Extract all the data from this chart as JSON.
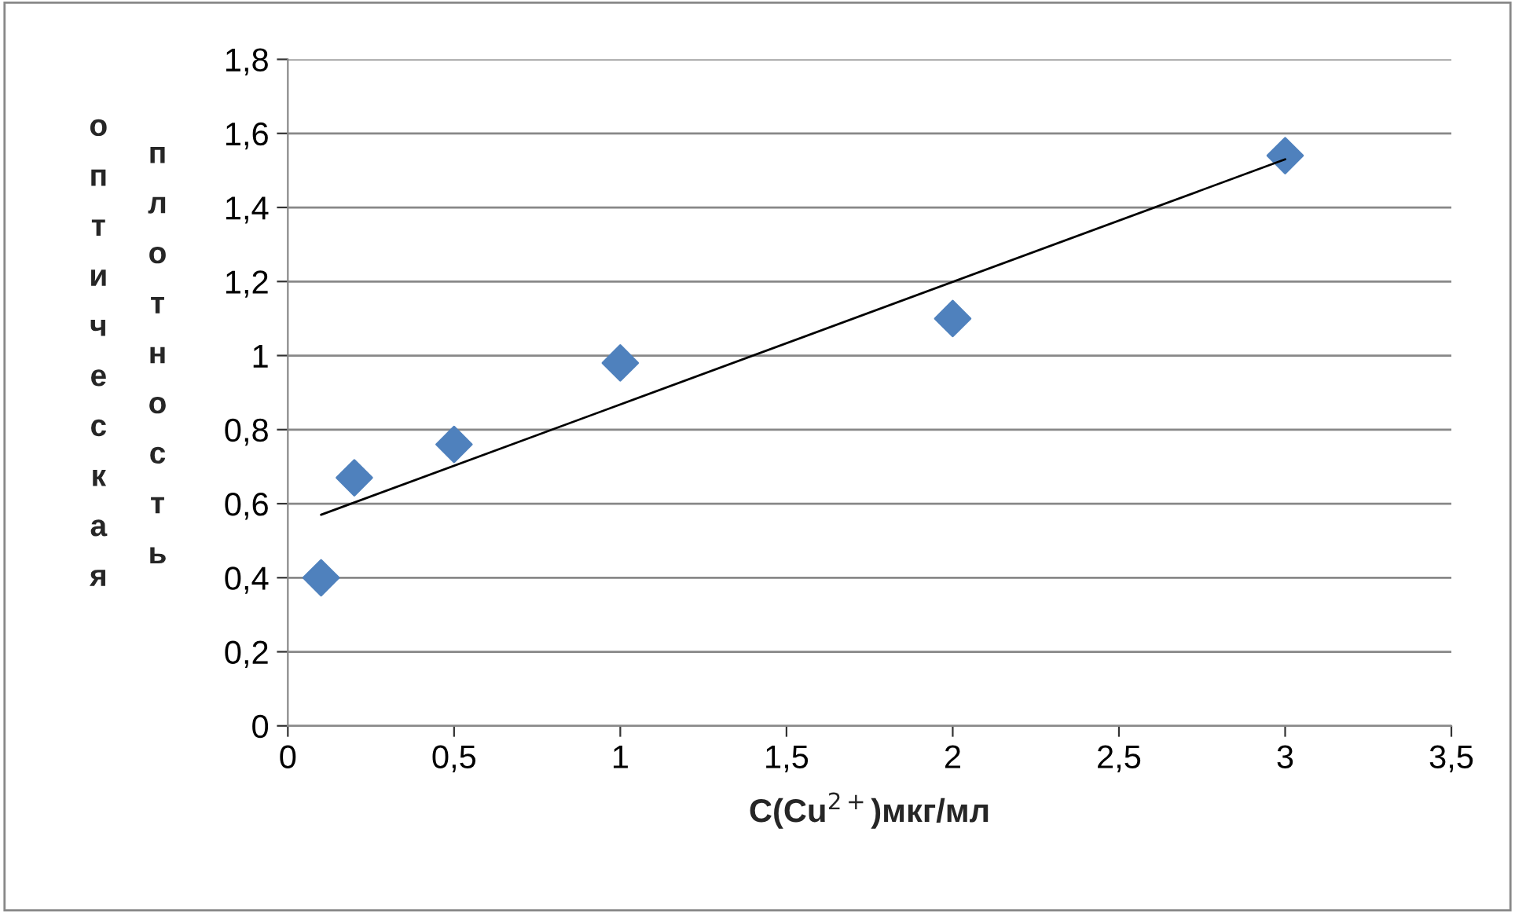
{
  "chart_data": {
    "type": "scatter",
    "xlabel": "C(Cu$^{2+}$)мкг/мл",
    "ylabel": "оптическая плотность",
    "xlim": [
      0,
      3.5
    ],
    "xticks": [
      0,
      {
        "value": 0.5,
        "label": "0,5"
      },
      1,
      {
        "value": 1.5,
        "label": "1,5"
      },
      2,
      {
        "value": 2.5,
        "label": "2,5"
      },
      3,
      {
        "value": 3.5,
        "label": "3,5"
      }
    ],
    "ylim": [
      0,
      1.8
    ],
    "yticks": [
      0,
      {
        "value": 0.2,
        "label": "0,2"
      },
      {
        "value": 0.4,
        "label": "0,4"
      },
      {
        "value": 0.6,
        "label": "0,6"
      },
      {
        "value": 0.8,
        "label": "0,8"
      },
      1,
      {
        "value": 1.2,
        "label": "1,2"
      },
      {
        "value": 1.4,
        "label": "1,4"
      },
      {
        "value": 1.6,
        "label": "1,6"
      },
      {
        "value": 1.8,
        "label": "1,8"
      }
    ],
    "grid": "y",
    "legend": false,
    "marker": "diamond",
    "series": [
      {
        "color": "#4f81bd",
        "x": [
          0.1,
          0.2,
          0.5,
          1,
          2,
          3
        ],
        "values": [
          0.4,
          0.67,
          0.76,
          0.98,
          1.1,
          1.54
        ]
      },
      {
        "type": "line",
        "marker": "none",
        "color": "#000000",
        "x": [
          0.1,
          3
        ],
        "values": [
          0.57,
          1.53
        ]
      }
    ]
  }
}
